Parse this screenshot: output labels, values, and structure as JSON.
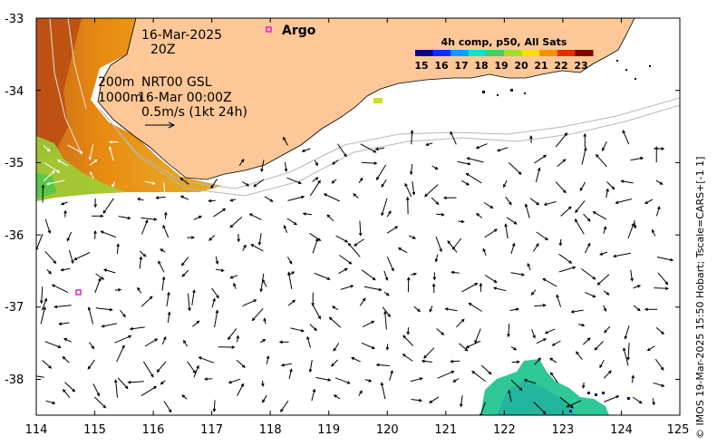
{
  "map": {
    "date_label": "16-Mar-2025",
    "time_label": "20Z",
    "contour_depth_1": "200m",
    "contour_depth_2": "1000m",
    "product_label": "NRT00 GSL",
    "current_time_label": "16-Mar 00:00Z",
    "scale_label": "0.5m/s (1kt 24h)",
    "argo_label": "Argo",
    "x_ticks": [
      "114",
      "115",
      "116",
      "117",
      "118",
      "119",
      "120",
      "121",
      "122",
      "123",
      "124",
      "125"
    ],
    "y_ticks": [
      "-33",
      "-34",
      "-35",
      "-36",
      "-37",
      "-38"
    ],
    "land_color": "#fdc797",
    "argo_color": "#e020e0"
  },
  "colorbar": {
    "title": "4h comp, p50, All Sats",
    "ticks": [
      "15",
      "16",
      "17",
      "18",
      "19",
      "20",
      "21",
      "22",
      "23"
    ],
    "colors": [
      "#00008f",
      "#0030ff",
      "#00a0ff",
      "#10e0d0",
      "#40d060",
      "#a0e020",
      "#f8e000",
      "#f89000",
      "#e03000",
      "#800000"
    ]
  },
  "credit": "© IMOS 19-Mar-2025 15:50 Hobart; Tscale=CARS+[-1 1]"
}
